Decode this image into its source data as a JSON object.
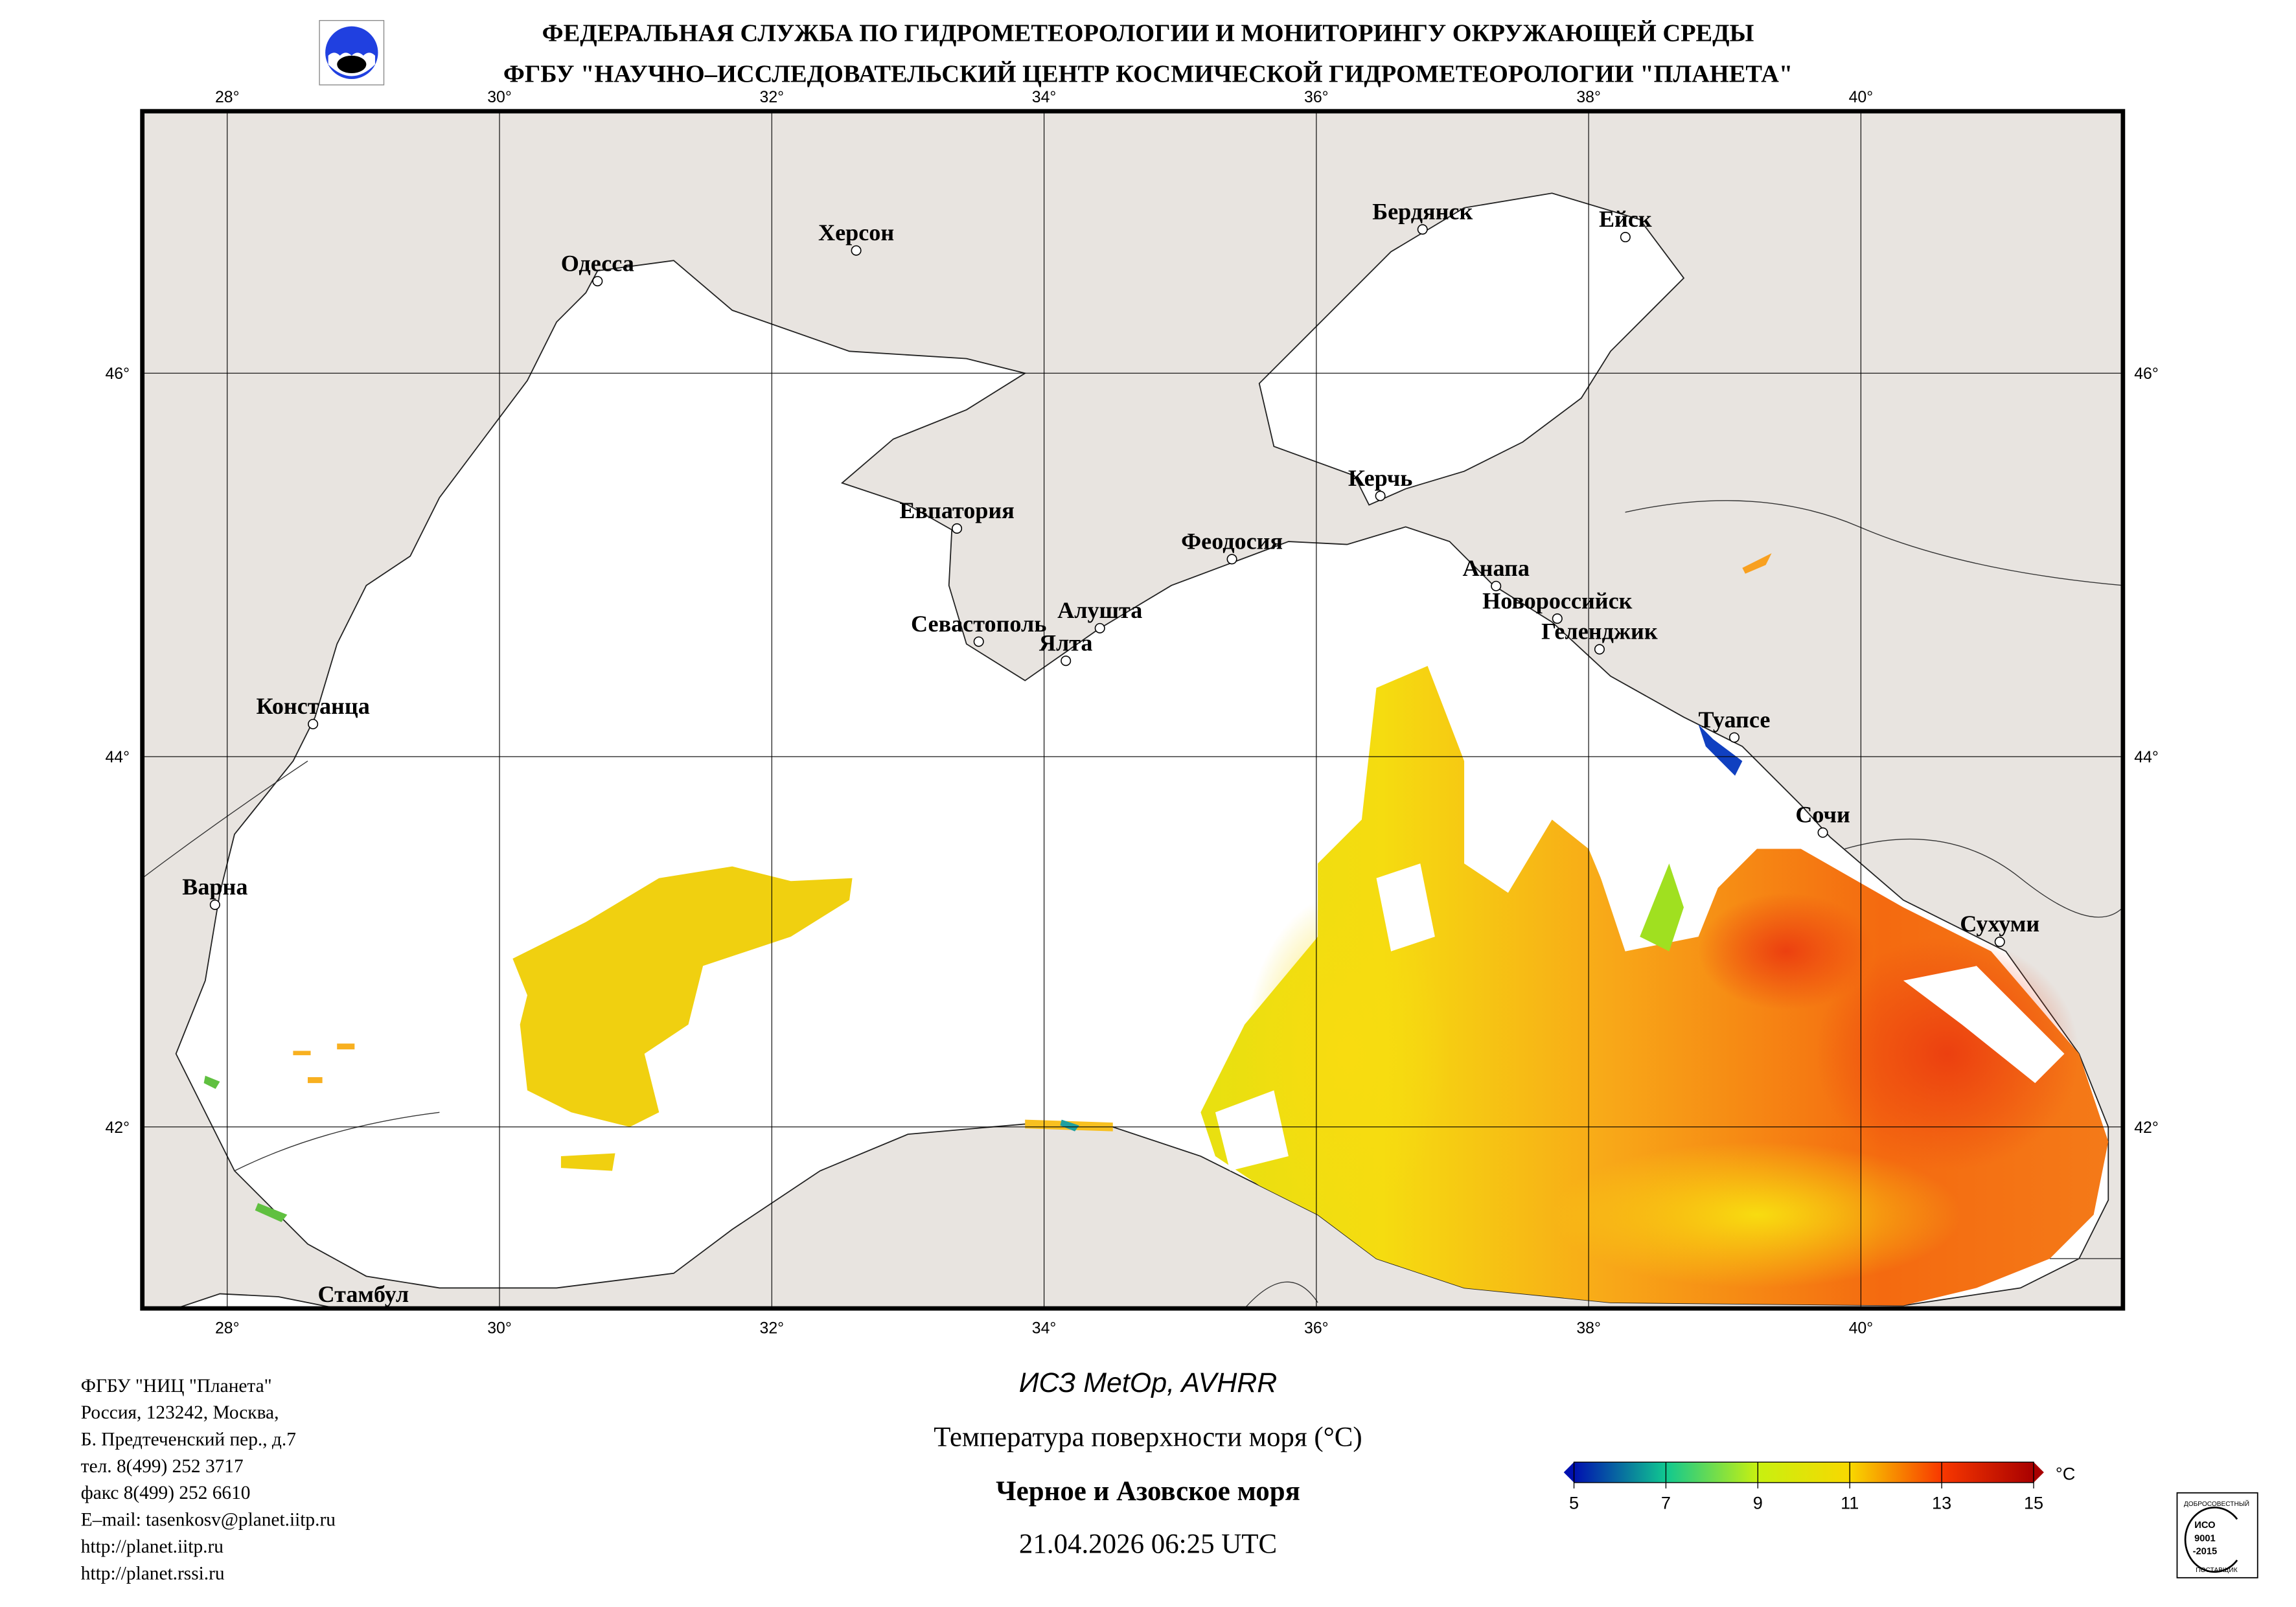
{
  "header": {
    "line1": "ФЕДЕРАЛЬНАЯ СЛУЖБА ПО ГИДРОМЕТЕОРОЛОГИИ И МОНИТОРИНГУ ОКРУЖАЮЩЕЙ СРЕДЫ",
    "line2": "ФГБУ \"НАУЧНО–ИССЛЕДОВАТЕЛЬСКИЙ ЦЕНТР КОСМИЧЕСКОЙ ГИДРОМЕТЕОРОЛОГИИ \"ПЛАНЕТА\""
  },
  "map": {
    "lon_ticks": [
      {
        "v": 28,
        "label": "28°"
      },
      {
        "v": 30,
        "label": "30°"
      },
      {
        "v": 32,
        "label": "32°"
      },
      {
        "v": 34,
        "label": "34°"
      },
      {
        "v": 36,
        "label": "36°"
      },
      {
        "v": 38,
        "label": "38°"
      },
      {
        "v": 40,
        "label": "40°"
      }
    ],
    "lat_ticks": [
      {
        "v": 46,
        "label": "46°"
      },
      {
        "v": 44,
        "label": "44°"
      },
      {
        "v": 42,
        "label": "42°"
      }
    ],
    "cities": [
      {
        "name": "Одесса",
        "lon": 30.72,
        "lat": 46.48
      },
      {
        "name": "Херсон",
        "lon": 32.62,
        "lat": 46.64
      },
      {
        "name": "Бердянск",
        "lon": 36.78,
        "lat": 46.75
      },
      {
        "name": "Ейск",
        "lon": 38.27,
        "lat": 46.71
      },
      {
        "name": "Евпатория",
        "lon": 33.36,
        "lat": 45.19
      },
      {
        "name": "Керчь",
        "lon": 36.47,
        "lat": 45.36
      },
      {
        "name": "Феодосия",
        "lon": 35.38,
        "lat": 45.03
      },
      {
        "name": "Анапа",
        "lon": 37.32,
        "lat": 44.89
      },
      {
        "name": "Новороссийск",
        "lon": 37.77,
        "lat": 44.72
      },
      {
        "name": "Геленджик",
        "lon": 38.08,
        "lat": 44.56
      },
      {
        "name": "Севастополь",
        "lon": 33.52,
        "lat": 44.6
      },
      {
        "name": "Алушта",
        "lon": 34.41,
        "lat": 44.67
      },
      {
        "name": "Ялта",
        "lon": 34.16,
        "lat": 44.5
      },
      {
        "name": "Констанца",
        "lon": 28.63,
        "lat": 44.17
      },
      {
        "name": "Варна",
        "lon": 27.91,
        "lat": 43.2
      },
      {
        "name": "Туапсе",
        "lon": 39.07,
        "lat": 44.1
      },
      {
        "name": "Сочи",
        "lon": 39.72,
        "lat": 43.59
      },
      {
        "name": "Сухуми",
        "lon": 41.02,
        "lat": 43.0
      },
      {
        "name": "Стамбул",
        "lon": 29.0,
        "lat": 41.0
      }
    ]
  },
  "footer_left": [
    "ФГБУ \"НИЦ \"Планета\"",
    "Россия, 123242, Москва,",
    "Б. Предтеченский пер., д.7",
    "тел. 8(499) 252 3717",
    "факс 8(499) 252 6610",
    "E–mail: tasenkosv@planet.iitp.ru",
    "http://planet.iitp.ru",
    "http://planet.rssi.ru"
  ],
  "footer_center": {
    "satellite": "ИСЗ MetOp, AVHRR",
    "product": "Температура поверхности моря (°C)",
    "region": "Черное и Азовское моря",
    "datetime": "21.04.2026 06:25 UTC"
  },
  "legend": {
    "unit": "°C",
    "ticks": [
      "5",
      "7",
      "9",
      "11",
      "13",
      "15"
    ],
    "colors": [
      "#0010b0",
      "#10c890",
      "#c8f010",
      "#f8d800",
      "#f83800",
      "#a80000"
    ]
  },
  "iso_logo": {
    "top": "ДОБРОСОВЕСТНЫЙ",
    "l1": "ИСО",
    "l2": "9001",
    "l3": "-2015",
    "bottom": "ПОСТАВЩИК"
  },
  "colors": {
    "land": "#e8e4e0",
    "sea": "#ffffff"
  }
}
